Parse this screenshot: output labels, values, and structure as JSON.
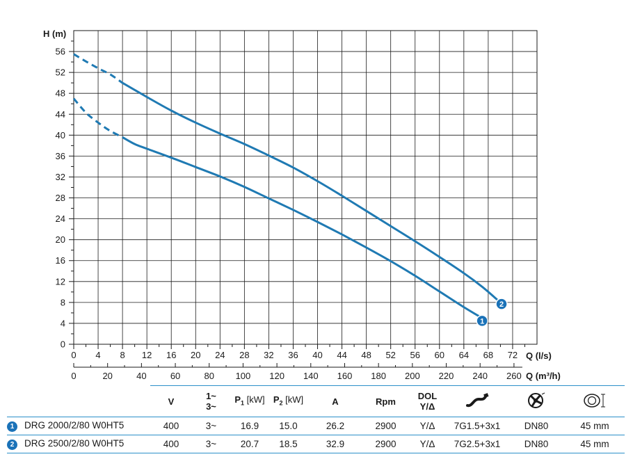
{
  "chart_data": {
    "type": "line",
    "xlabel": "Q (l/s)",
    "xlabel2": "Q (m³/h)",
    "ylabel": "H (m)",
    "xlim": [
      0,
      76
    ],
    "ylim": [
      0,
      60
    ],
    "x_ticks": [
      "0",
      "4",
      "8",
      "12",
      "16",
      "20",
      "24",
      "28",
      "32",
      "36",
      "40",
      "44",
      "48",
      "52",
      "56",
      "60",
      "64",
      "68",
      "72"
    ],
    "x2_ticks": [
      "0",
      "20",
      "40",
      "60",
      "80",
      "100",
      "120",
      "140",
      "160",
      "180",
      "200",
      "220",
      "240",
      "260"
    ],
    "y_ticks": [
      "0",
      "4",
      "8",
      "12",
      "16",
      "20",
      "24",
      "28",
      "32",
      "36",
      "40",
      "44",
      "48",
      "52",
      "56"
    ],
    "grid": true,
    "series": [
      {
        "name": "1",
        "color": "#1f7ab3",
        "dashed_until_x": 8,
        "points": [
          [
            0,
            47
          ],
          [
            2,
            44.3
          ],
          [
            4,
            42.4
          ],
          [
            6,
            40.8
          ],
          [
            8,
            39.6
          ],
          [
            10,
            38.3
          ],
          [
            12,
            37.4
          ],
          [
            16,
            35.7
          ],
          [
            20,
            33.9
          ],
          [
            24,
            32.1
          ],
          [
            28,
            30.1
          ],
          [
            32,
            27.9
          ],
          [
            36,
            25.7
          ],
          [
            40,
            23.4
          ],
          [
            44,
            21.0
          ],
          [
            48,
            18.5
          ],
          [
            52,
            15.9
          ],
          [
            56,
            13.1
          ],
          [
            60,
            10.1
          ],
          [
            64,
            7.1
          ],
          [
            67,
            5.0
          ]
        ]
      },
      {
        "name": "2",
        "color": "#1f7ab3",
        "dashed_until_x": 8,
        "points": [
          [
            0,
            55.5
          ],
          [
            2,
            54.1
          ],
          [
            4,
            52.8
          ],
          [
            6,
            51.6
          ],
          [
            8,
            50.0
          ],
          [
            12,
            47.3
          ],
          [
            16,
            44.7
          ],
          [
            20,
            42.4
          ],
          [
            24,
            40.3
          ],
          [
            28,
            38.3
          ],
          [
            32,
            36.1
          ],
          [
            36,
            33.8
          ],
          [
            40,
            31.2
          ],
          [
            44,
            28.4
          ],
          [
            48,
            25.5
          ],
          [
            52,
            22.6
          ],
          [
            56,
            19.7
          ],
          [
            60,
            16.7
          ],
          [
            64,
            13.6
          ],
          [
            67,
            11.0
          ],
          [
            69.5,
            8.5
          ]
        ]
      }
    ]
  },
  "table": {
    "headers": {
      "v": "V",
      "phase_top": "1~",
      "phase_bottom": "3~",
      "p1": "P",
      "p1_sub": "1",
      "p1_unit": "[kW]",
      "p2": "P",
      "p2_sub": "2",
      "p2_unit": "[kW]",
      "a": "A",
      "rpm": "Rpm",
      "dol_top": "DOL",
      "dol_bottom": "Y/Δ"
    },
    "rows": [
      {
        "badge": "1",
        "model": "DRG 2000/2/80 W0HT5",
        "v": "400",
        "phase": "3~",
        "p1": "16.9",
        "p2": "15.0",
        "a": "26.2",
        "rpm": "2900",
        "start": "Y/Δ",
        "cable": "7G1.5+3x1",
        "outlet": "DN80",
        "passage": "45 mm"
      },
      {
        "badge": "2",
        "model": "DRG 2500/2/80 W0HT5",
        "v": "400",
        "phase": "3~",
        "p1": "20.7",
        "p2": "18.5",
        "a": "32.9",
        "rpm": "2900",
        "start": "Y/Δ",
        "cable": "7G2.5+3x1",
        "outlet": "DN80",
        "passage": "45 mm"
      }
    ]
  }
}
